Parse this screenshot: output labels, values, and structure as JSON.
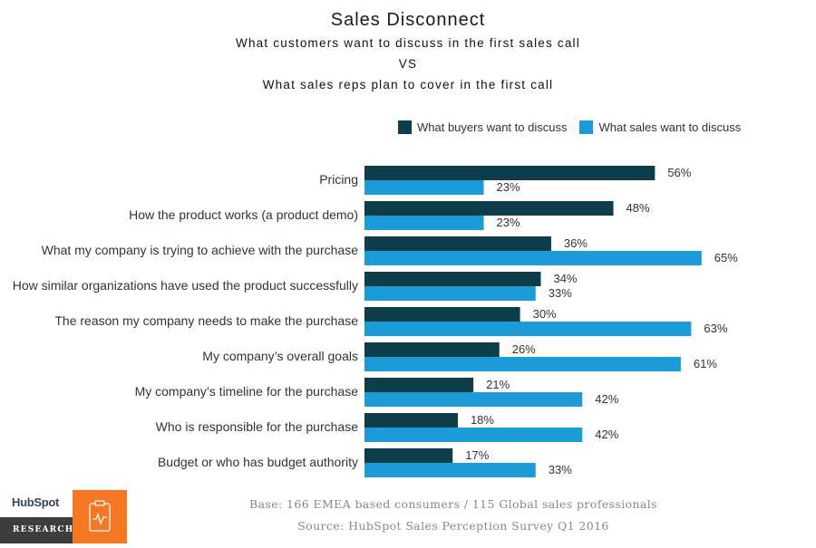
{
  "chart_data": {
    "type": "bar",
    "orientation": "horizontal",
    "title": "Sales Disconnect",
    "subtitle_lines": [
      "What customers want to discuss in the first sales call",
      "VS",
      "What sales reps plan to cover in the first call"
    ],
    "categories": [
      "Pricing",
      "How the product works (a product demo)",
      "What my company is trying to achieve with the purchase",
      "How similar organizations  have used the product successfully",
      "The reason my company needs to make the purchase",
      "My company’s overall goals",
      "My company’s timeline for the purchase",
      "Who is responsible for the purchase",
      "Budget or who has budget authority"
    ],
    "series": [
      {
        "name": "What buyers want to discuss",
        "color": "#0e3d4a",
        "values": [
          56,
          48,
          36,
          34,
          30,
          26,
          21,
          18,
          17
        ]
      },
      {
        "name": "What sales want to discuss",
        "color": "#1b9bd8",
        "values": [
          23,
          23,
          65,
          33,
          63,
          61,
          42,
          42,
          33
        ]
      }
    ],
    "value_suffix": "%",
    "legend_position": "top-right",
    "grid": false
  },
  "footer": {
    "base": "Base: 166 EMEA based consumers / 115 Global sales professionals",
    "source": "Source: HubSpot Sales Perception Survey Q1 2016"
  },
  "logo": {
    "brand": "HubSpot",
    "label": "RESEARCH",
    "icon": "clipboard-pulse-icon"
  }
}
